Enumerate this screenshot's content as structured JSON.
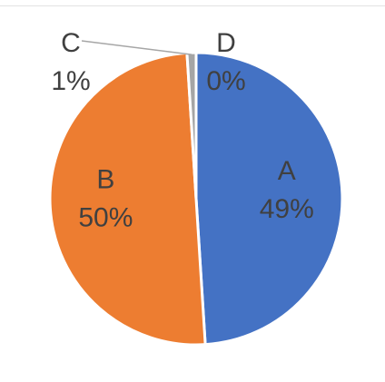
{
  "chart_data": {
    "type": "pie",
    "title": "",
    "slices": [
      {
        "name": "A",
        "value": 49,
        "percent_label": "49%",
        "color": "#4472C4"
      },
      {
        "name": "B",
        "value": 50,
        "percent_label": "50%",
        "color": "#ED7D31"
      },
      {
        "name": "C",
        "value": 1,
        "percent_label": "1%",
        "color": "#A5A5A5"
      },
      {
        "name": "D",
        "value": 0,
        "percent_label": "0%",
        "color": "#FFC000"
      }
    ],
    "data_labels": "category-and-percent",
    "legend": "none"
  }
}
